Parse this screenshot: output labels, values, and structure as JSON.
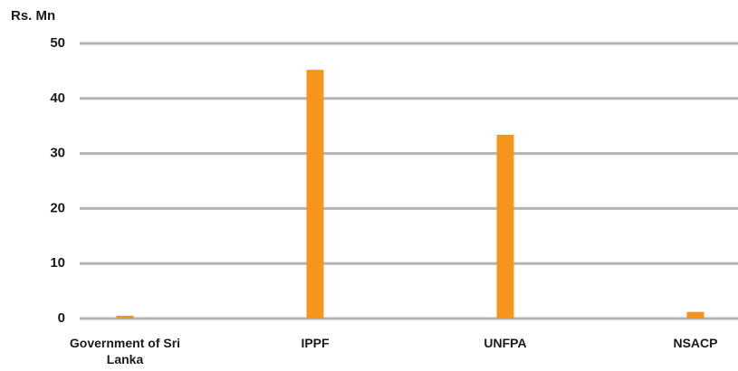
{
  "chart_data": {
    "type": "bar",
    "y_label": "Rs. Mn",
    "categories": [
      "Government of Sri Lanka",
      "IPPF",
      "UNFPA",
      "NSACP"
    ],
    "values": [
      0.5,
      45.2,
      33.4,
      1.2
    ],
    "color": "#f7941d",
    "ylim": [
      0,
      50
    ],
    "yticks": [
      0,
      10,
      20,
      30,
      40,
      50
    ],
    "grid": true
  }
}
